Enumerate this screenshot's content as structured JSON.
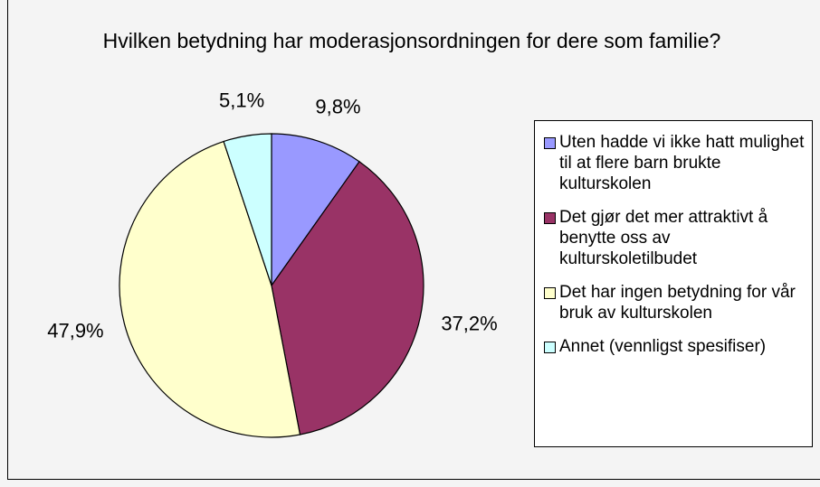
{
  "chart_data": {
    "type": "pie",
    "title": "Hvilken betydning har moderasjonsordningen for dere som familie?",
    "categories": [
      "Uten hadde vi ikke hatt mulighet til at flere barn brukte kulturskolen",
      "Det gjør det mer attraktivt å benytte oss av kulturskoletilbudet",
      "Det har ingen betydning for vår bruk av kulturskolen",
      "Annet (vennligst spesifiser)"
    ],
    "values": [
      9.8,
      37.2,
      47.9,
      5.1
    ],
    "value_labels": [
      "9,8%",
      "37,2%",
      "47,9%",
      "5,1%"
    ],
    "colors": [
      "#9999ff",
      "#993366",
      "#ffffcc",
      "#ccffff"
    ],
    "legend": "right"
  }
}
